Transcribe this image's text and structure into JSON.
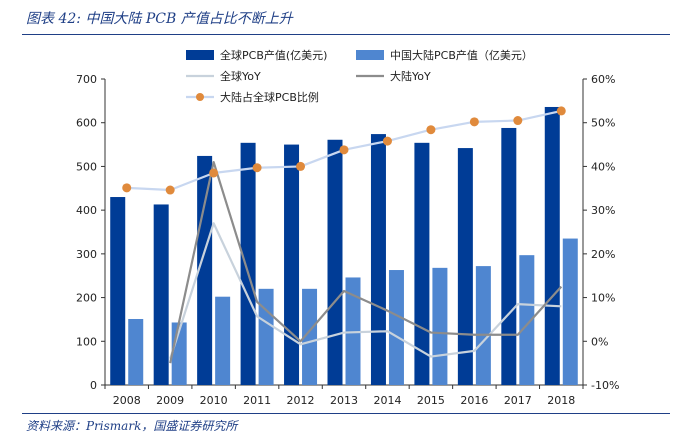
{
  "figure": {
    "title": "图表 42:  中国大陆 PCB 产值占比不断上升",
    "source": "资料来源：Prismark，国盛证券研究所"
  },
  "chart_data": {
    "type": "bar",
    "categories": [
      "2008",
      "2009",
      "2010",
      "2011",
      "2012",
      "2013",
      "2014",
      "2015",
      "2016",
      "2017",
      "2018"
    ],
    "series": [
      {
        "name": "全球PCB产值(亿美元)",
        "type": "bar",
        "axis": "left",
        "color": "#003c96",
        "values": [
          430,
          413,
          524,
          554,
          550,
          561,
          574,
          554,
          542,
          588,
          636
        ]
      },
      {
        "name": "中国大陆PCB产值（亿美元）",
        "type": "bar",
        "axis": "left",
        "color": "#4f86d0",
        "values": [
          151,
          143,
          202,
          220,
          220,
          246,
          263,
          268,
          272,
          297,
          335
        ]
      },
      {
        "name": "全球YoY",
        "type": "line",
        "axis": "right",
        "color": "#c8d2dc",
        "values": [
          null,
          -4.0,
          27.0,
          5.7,
          -0.7,
          2.0,
          2.3,
          -3.5,
          -2.2,
          8.5,
          8.0
        ]
      },
      {
        "name": "大陆YoY",
        "type": "line",
        "axis": "right",
        "color": "#8c8c8c",
        "values": [
          null,
          -5.0,
          41.0,
          9.0,
          0.0,
          11.5,
          7.0,
          2.0,
          1.5,
          1.5,
          12.5
        ]
      },
      {
        "name": "大陆占全球PCB比例",
        "type": "line-marker",
        "axis": "right",
        "color": "#c8d7f0",
        "marker_color": "#e08a3c",
        "values": [
          35.1,
          34.6,
          38.5,
          39.7,
          40.0,
          43.8,
          45.8,
          48.4,
          50.2,
          50.5,
          52.7
        ]
      }
    ],
    "y_left": {
      "min": 0,
      "max": 700,
      "ticks": [
        "0",
        "100",
        "200",
        "300",
        "400",
        "500",
        "600",
        "700"
      ]
    },
    "y_right": {
      "min": -10,
      "max": 60,
      "ticks": [
        "-10%",
        "0%",
        "10%",
        "20%",
        "30%",
        "40%",
        "50%",
        "60%"
      ]
    },
    "legend_position": "top",
    "grid": false
  }
}
